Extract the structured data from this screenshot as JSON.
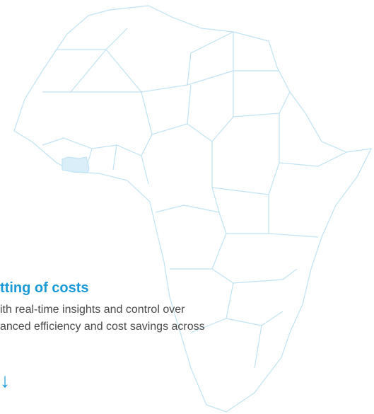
{
  "section": {
    "heading": "tting of costs",
    "body_lines": [
      "ith real-time insights and control over",
      "anced efficiency and cost savings across"
    ],
    "arrow": "↓"
  }
}
